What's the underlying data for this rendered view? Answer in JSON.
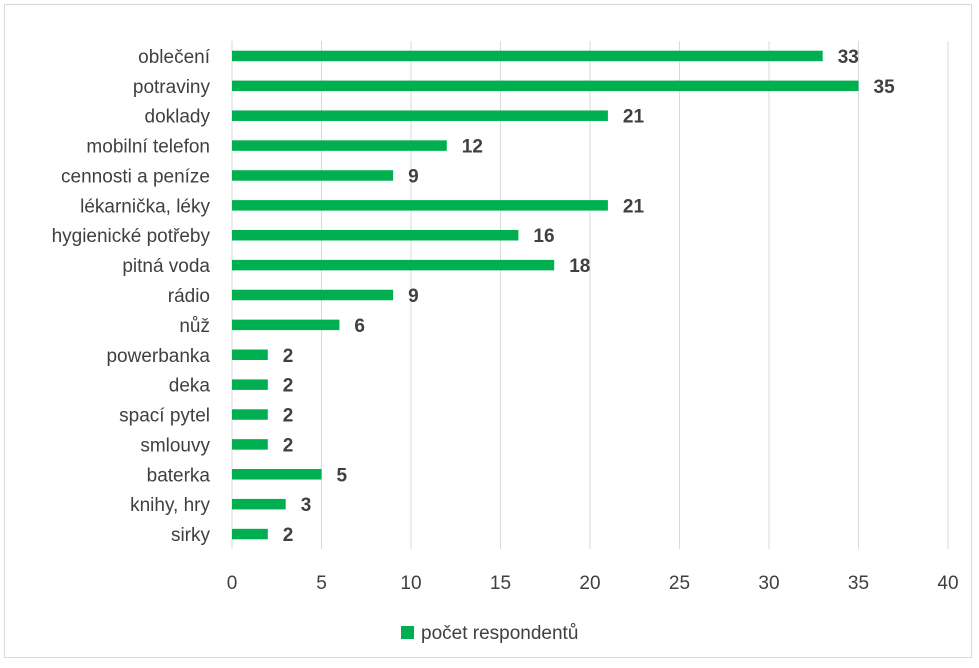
{
  "chart_data": {
    "type": "bar",
    "orientation": "horizontal",
    "categories": [
      "oblečení",
      "potraviny",
      "doklady",
      "mobilní telefon",
      "cennosti a peníze",
      "lékarnička, léky",
      "hygienické potřeby",
      "pitná voda",
      "rádio",
      "nůž",
      "powerbanka",
      "deka",
      "spací pytel",
      "smlouvy",
      "baterka",
      "knihy, hry",
      "sirky"
    ],
    "series": [
      {
        "name": "počet respondentů",
        "values": [
          33,
          35,
          21,
          12,
          9,
          21,
          16,
          18,
          9,
          6,
          2,
          2,
          2,
          2,
          5,
          3,
          2
        ],
        "color": "#00b050"
      }
    ],
    "xlim": [
      0,
      40
    ],
    "xticks": [
      "0",
      "5",
      "10",
      "15",
      "20",
      "25",
      "30",
      "35",
      "40"
    ],
    "data_labels": true,
    "grid": "vertical",
    "legend_position": "bottom",
    "gridline_color": "#d9d9d9"
  }
}
